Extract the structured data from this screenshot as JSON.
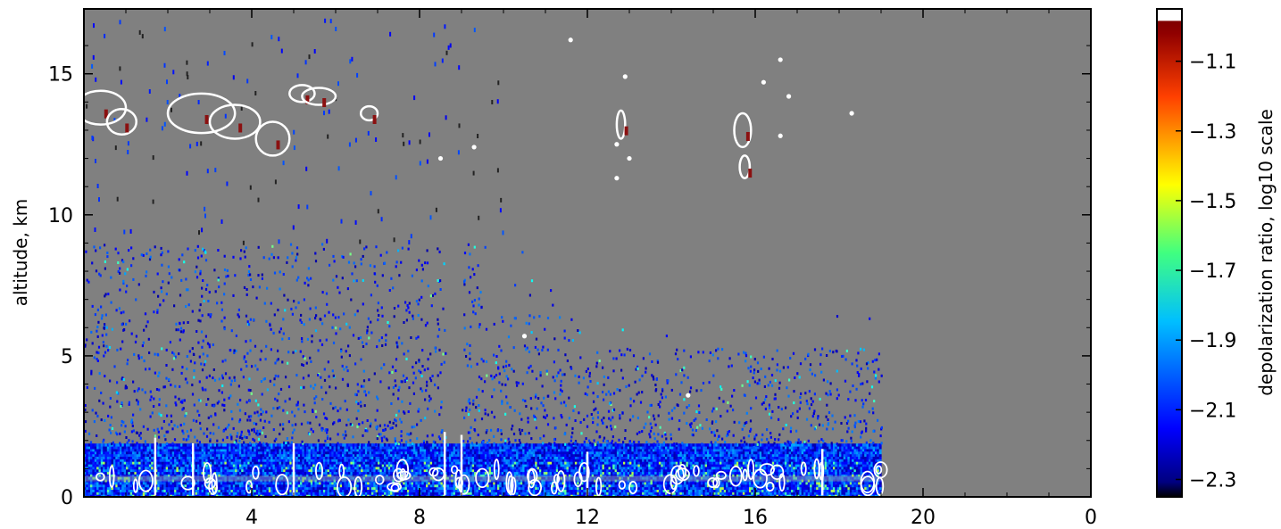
{
  "chart_data": {
    "type": "heatmap",
    "title": "",
    "xlabel": "",
    "ylabel": "altitude, km",
    "xlim": [
      0,
      24
    ],
    "ylim": [
      0,
      17.3
    ],
    "x_tick_labels": [
      "4",
      "8",
      "12",
      "16",
      "20",
      "0"
    ],
    "y_ticks": [
      0,
      5,
      10,
      15
    ],
    "y_tick_labels": [
      "0",
      "5",
      "10",
      "15"
    ],
    "data_end_x": 19.0,
    "background_color": "#808080",
    "colorbar": {
      "label": "depolarization ratio, log10 scale",
      "range": [
        -2.35,
        -0.95
      ],
      "ticks": [
        -1.1,
        -1.3,
        -1.5,
        -1.7,
        -1.9,
        -2.1,
        -2.3
      ],
      "tick_labels": [
        "−1.1",
        "−1.3",
        "−1.5",
        "−1.7",
        "−1.9",
        "−2.1",
        "−2.3"
      ],
      "colormap": "jet",
      "over_color": "#ffffff"
    },
    "layers": [
      {
        "name": "boundary layer",
        "altitude_km": [
          0,
          1.9
        ],
        "x_range": [
          0,
          19.0
        ],
        "typical_value": -2.1
      },
      {
        "name": "scattered aerosol",
        "altitude_km": [
          1.9,
          9.0
        ],
        "x_range": [
          0,
          19.0
        ],
        "typical_value": -2.15
      },
      {
        "name": "cirrus",
        "altitude_km": [
          11.0,
          15.5
        ],
        "x_range": [
          0.3,
          18.5
        ],
        "typical_value": -1.0
      }
    ]
  }
}
